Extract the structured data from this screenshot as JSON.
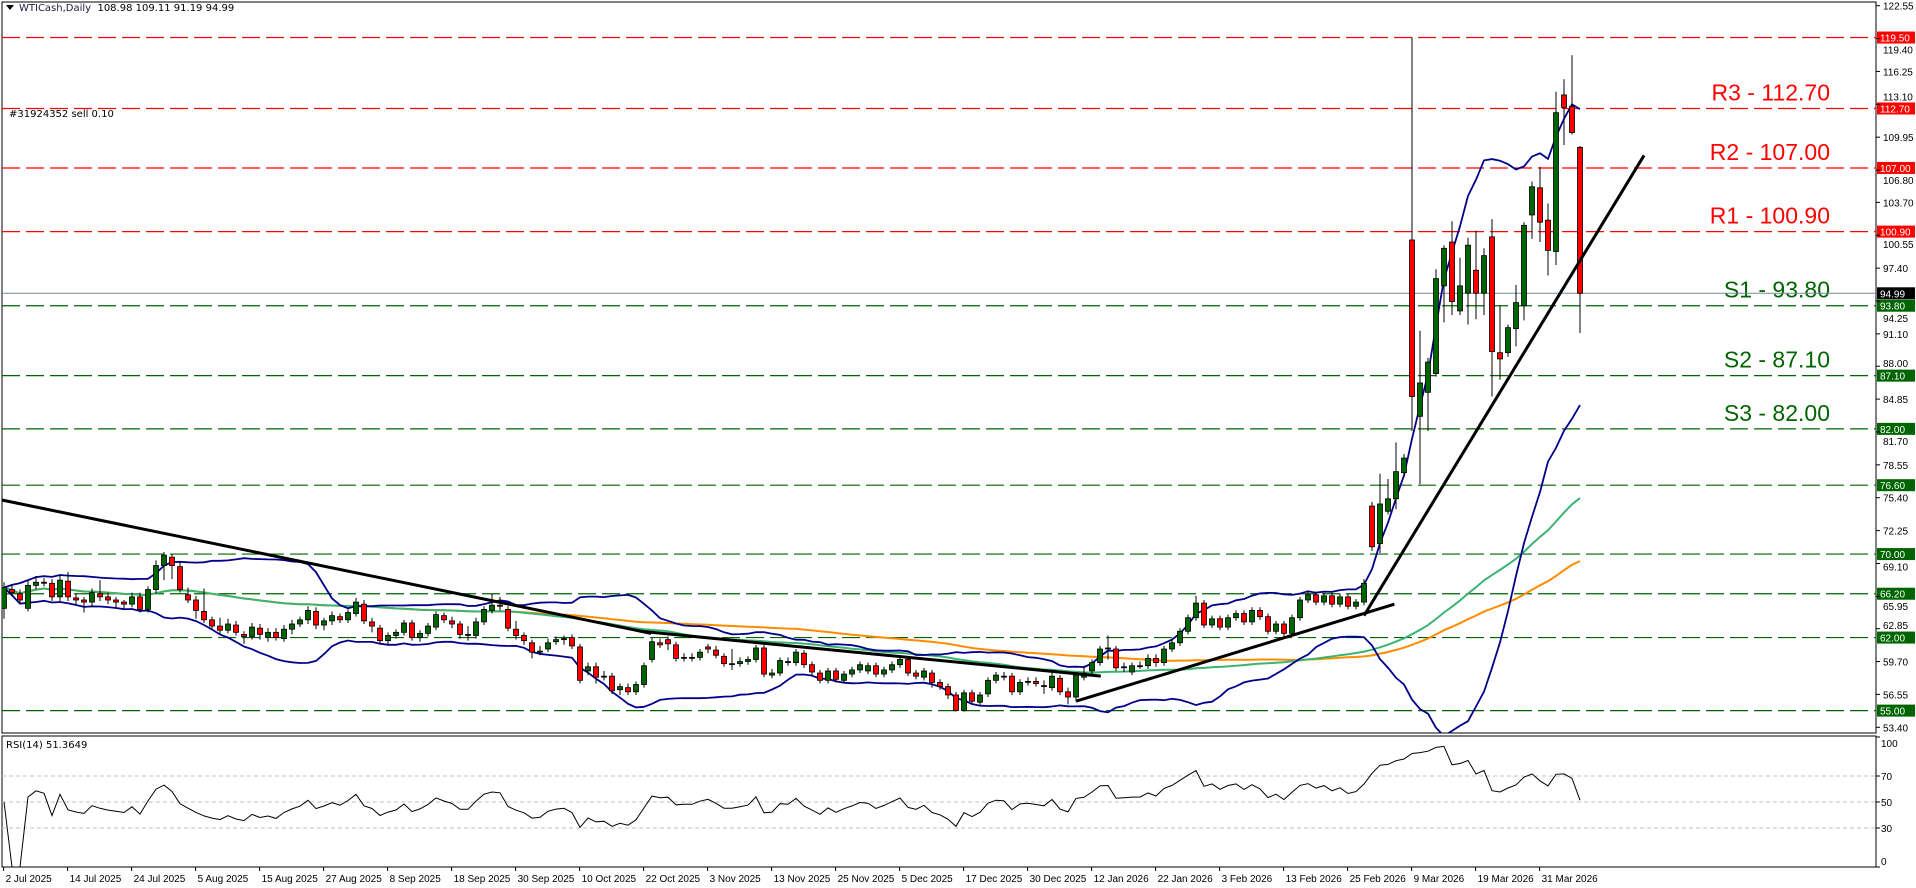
{
  "header": {
    "symbol": "WTICash,Daily",
    "ohlc_text": "108.98 109.11 91.19 94.99"
  },
  "order_label": "#31924352 sell 0.10",
  "rsi": {
    "label": "RSI(14) 51.3649",
    "levels": [
      70,
      50,
      30
    ],
    "axis_ticks": [
      "100",
      "70",
      "50",
      "30",
      "0"
    ]
  },
  "colors": {
    "up": "#006400",
    "down": "#ff0000",
    "resistance": "#ff0000",
    "support": "#006400",
    "bollinger": "#00008b",
    "ma_fast": "#3cb371",
    "ma_slow": "#ff8c00",
    "trendline": "#000000",
    "current_price": "#778899"
  },
  "chart_data": {
    "type": "candlestick",
    "title": "",
    "ylim": [
      53.4,
      122.55
    ],
    "y_ticks": [
      "122.55",
      "119.40",
      "116.25",
      "113.10",
      "109.95",
      "106.80",
      "103.70",
      "100.55",
      "97.40",
      "94.25",
      "91.10",
      "88.00",
      "84.85",
      "81.70",
      "78.55",
      "75.40",
      "72.25",
      "69.10",
      "65.95",
      "62.85",
      "59.70",
      "56.55",
      "53.40"
    ],
    "x_labels": [
      "2 Jul 2025",
      "14 Jul 2025",
      "24 Jul 2025",
      "5 Aug 2025",
      "15 Aug 2025",
      "27 Aug 2025",
      "8 Sep 2025",
      "18 Sep 2025",
      "30 Sep 2025",
      "10 Oct 2025",
      "22 Oct 2025",
      "3 Nov 2025",
      "13 Nov 2025",
      "25 Nov 2025",
      "5 Dec 2025",
      "17 Dec 2025",
      "30 Dec 2025",
      "12 Jan 2026",
      "22 Jan 2026",
      "3 Feb 2026",
      "13 Feb 2026",
      "25 Feb 2026",
      "9 Mar 2026",
      "19 Mar 2026",
      "31 Mar 2026"
    ],
    "bars_per_label": 8,
    "current_price": {
      "value": 94.99,
      "badge": "94.99"
    },
    "levels": [
      {
        "price": 119.5,
        "badge": "119.50",
        "kind": "resistance",
        "label": ""
      },
      {
        "price": 112.7,
        "badge": "112.70",
        "kind": "resistance",
        "label": "R3 - 112.70"
      },
      {
        "price": 107.0,
        "badge": "107.00",
        "kind": "resistance",
        "label": "R2 - 107.00"
      },
      {
        "price": 100.9,
        "badge": "100.90",
        "kind": "resistance",
        "label": "R1 - 100.90"
      },
      {
        "price": 93.8,
        "badge": "93.80",
        "kind": "support",
        "label": "S1 - 93.80"
      },
      {
        "price": 87.1,
        "badge": "87.10",
        "kind": "support",
        "label": "S2 - 87.10"
      },
      {
        "price": 82.0,
        "badge": "82.00",
        "kind": "support",
        "label": "S3 - 82.00"
      },
      {
        "price": 76.6,
        "badge": "76.60",
        "kind": "support",
        "label": ""
      },
      {
        "price": 70.0,
        "badge": "70.00",
        "kind": "support",
        "label": ""
      },
      {
        "price": 66.2,
        "badge": "66.20",
        "kind": "support",
        "label": ""
      },
      {
        "price": 62.0,
        "badge": "62.00",
        "kind": "support",
        "label": ""
      },
      {
        "price": 55.0,
        "badge": "55.00",
        "kind": "support",
        "label": ""
      }
    ],
    "trendlines": [
      {
        "from": [
          -0.4,
          75.2
        ],
        "to": [
          80.9,
          62.4
        ]
      },
      {
        "from": [
          79.6,
          62.6
        ],
        "to": [
          137.1,
          58.3
        ]
      },
      {
        "from": [
          134,
          55.9
        ],
        "to": [
          173.8,
          65.2
        ]
      },
      {
        "from": [
          170,
          64.1
        ],
        "to": [
          205,
          108.2
        ]
      }
    ],
    "ohlc": [
      [
        64.8,
        67.3,
        63.8,
        66.8
      ],
      [
        66.6,
        67.0,
        66.0,
        66.3
      ],
      [
        66.2,
        66.6,
        65.2,
        65.6
      ],
      [
        64.8,
        67.5,
        64.5,
        67.0
      ],
      [
        67.0,
        67.9,
        66.6,
        67.3
      ],
      [
        67.3,
        67.7,
        66.9,
        67.2
      ],
      [
        67.2,
        67.6,
        65.5,
        65.9
      ],
      [
        65.9,
        68.0,
        65.5,
        67.5
      ],
      [
        67.4,
        68.3,
        65.5,
        65.9
      ],
      [
        65.8,
        66.2,
        65.2,
        65.6
      ],
      [
        65.6,
        65.9,
        64.4,
        65.4
      ],
      [
        65.4,
        66.7,
        65.0,
        66.3
      ],
      [
        66.2,
        67.5,
        65.5,
        65.9
      ],
      [
        65.9,
        66.3,
        65.2,
        65.6
      ],
      [
        65.6,
        65.9,
        64.8,
        65.4
      ],
      [
        65.4,
        65.6,
        64.8,
        65.2
      ],
      [
        65.2,
        66.3,
        64.9,
        65.9
      ],
      [
        65.9,
        66.3,
        64.4,
        64.7
      ],
      [
        64.7,
        66.9,
        64.4,
        66.6
      ],
      [
        66.6,
        69.4,
        66.2,
        68.9
      ],
      [
        68.9,
        70.2,
        67.5,
        69.9
      ],
      [
        69.7,
        70.0,
        67.6,
        68.9
      ],
      [
        68.8,
        69.2,
        66.3,
        66.6
      ],
      [
        66.1,
        66.8,
        65.3,
        65.6
      ],
      [
        65.6,
        66.0,
        63.8,
        64.6
      ],
      [
        64.5,
        66.7,
        63.4,
        63.7
      ],
      [
        63.7,
        64.0,
        62.8,
        63.1
      ],
      [
        63.1,
        63.9,
        62.3,
        62.7
      ],
      [
        62.7,
        63.8,
        62.4,
        63.3
      ],
      [
        63.2,
        63.6,
        62.2,
        62.5
      ],
      [
        62.3,
        62.6,
        61.4,
        62.1
      ],
      [
        62.1,
        63.4,
        61.8,
        63.0
      ],
      [
        62.9,
        63.3,
        61.8,
        62.3
      ],
      [
        62.0,
        62.9,
        61.6,
        62.5
      ],
      [
        62.5,
        62.9,
        61.7,
        62.0
      ],
      [
        61.9,
        63.2,
        61.6,
        62.8
      ],
      [
        62.8,
        63.7,
        62.3,
        63.3
      ],
      [
        63.3,
        64.0,
        63.0,
        63.7
      ],
      [
        63.7,
        65.0,
        63.3,
        64.6
      ],
      [
        64.5,
        64.9,
        62.8,
        63.2
      ],
      [
        63.2,
        63.9,
        62.7,
        63.6
      ],
      [
        63.6,
        64.5,
        63.2,
        64.1
      ],
      [
        64.0,
        64.3,
        63.4,
        63.7
      ],
      [
        63.7,
        64.7,
        63.4,
        64.4
      ],
      [
        64.3,
        65.8,
        64.0,
        65.4
      ],
      [
        65.2,
        65.6,
        63.3,
        63.6
      ],
      [
        63.5,
        63.9,
        62.5,
        63.1
      ],
      [
        62.9,
        63.2,
        61.4,
        61.7
      ],
      [
        61.7,
        62.5,
        61.3,
        62.2
      ],
      [
        62.2,
        62.8,
        61.9,
        62.5
      ],
      [
        62.5,
        63.7,
        62.2,
        63.4
      ],
      [
        63.4,
        63.7,
        61.7,
        62.0
      ],
      [
        62.0,
        62.7,
        61.6,
        62.4
      ],
      [
        62.4,
        63.4,
        62.1,
        63.1
      ],
      [
        63.0,
        64.5,
        62.7,
        64.2
      ],
      [
        64.1,
        64.4,
        63.4,
        63.7
      ],
      [
        63.6,
        64.0,
        62.9,
        63.3
      ],
      [
        63.3,
        63.6,
        61.9,
        62.3
      ],
      [
        62.3,
        63.1,
        61.7,
        62.3
      ],
      [
        62.2,
        63.9,
        61.9,
        63.5
      ],
      [
        63.5,
        65.0,
        63.2,
        64.7
      ],
      [
        64.6,
        66.2,
        64.3,
        65.1
      ],
      [
        65.1,
        65.9,
        64.6,
        65.0
      ],
      [
        64.7,
        65.0,
        62.6,
        62.9
      ],
      [
        62.8,
        63.6,
        61.8,
        62.2
      ],
      [
        62.2,
        62.5,
        61.3,
        61.7
      ],
      [
        61.5,
        61.8,
        60.0,
        60.6
      ],
      [
        60.6,
        61.2,
        60.3,
        60.7
      ],
      [
        60.9,
        61.9,
        60.6,
        61.5
      ],
      [
        61.6,
        62.1,
        61.3,
        61.8
      ],
      [
        61.8,
        62.2,
        61.3,
        61.9
      ],
      [
        62.0,
        62.3,
        60.9,
        61.2
      ],
      [
        61.1,
        61.4,
        57.6,
        57.9
      ],
      [
        58.8,
        59.6,
        58.4,
        59.2
      ],
      [
        59.2,
        59.6,
        57.6,
        58.2
      ],
      [
        58.3,
        58.8,
        57.9,
        58.3
      ],
      [
        58.3,
        58.6,
        56.6,
        56.9
      ],
      [
        57.0,
        57.6,
        56.5,
        57.3
      ],
      [
        57.2,
        57.6,
        56.5,
        56.8
      ],
      [
        56.8,
        57.8,
        56.5,
        57.5
      ],
      [
        57.5,
        59.6,
        57.2,
        59.3
      ],
      [
        59.9,
        62.0,
        59.6,
        61.6
      ],
      [
        61.5,
        61.9,
        61.0,
        61.3
      ],
      [
        61.8,
        62.1,
        60.8,
        61.4
      ],
      [
        61.3,
        61.6,
        59.7,
        60.0
      ],
      [
        60.1,
        60.5,
        59.7,
        60.1
      ],
      [
        60.1,
        60.5,
        59.7,
        60.1
      ],
      [
        60.1,
        60.9,
        59.8,
        60.6
      ],
      [
        61.1,
        61.4,
        60.5,
        60.9
      ],
      [
        60.8,
        61.2,
        60.0,
        60.3
      ],
      [
        60.2,
        60.5,
        59.2,
        59.5
      ],
      [
        59.5,
        60.9,
        58.9,
        59.5
      ],
      [
        59.5,
        60.1,
        59.2,
        59.7
      ],
      [
        59.7,
        60.2,
        59.4,
        59.9
      ],
      [
        59.9,
        61.3,
        59.6,
        61.0
      ],
      [
        61.0,
        61.3,
        58.2,
        58.5
      ],
      [
        58.4,
        59.0,
        58.1,
        58.6
      ],
      [
        58.6,
        60.1,
        58.3,
        59.8
      ],
      [
        59.7,
        60.1,
        59.3,
        59.7
      ],
      [
        59.6,
        60.9,
        59.3,
        60.6
      ],
      [
        60.5,
        60.8,
        59.1,
        59.4
      ],
      [
        59.4,
        59.7,
        58.4,
        58.7
      ],
      [
        58.6,
        58.9,
        57.6,
        57.9
      ],
      [
        57.9,
        59.1,
        57.6,
        58.8
      ],
      [
        58.8,
        59.1,
        57.7,
        58.0
      ],
      [
        57.9,
        58.8,
        57.6,
        58.5
      ],
      [
        58.5,
        59.2,
        58.2,
        58.9
      ],
      [
        58.9,
        59.7,
        58.6,
        59.4
      ],
      [
        58.8,
        59.6,
        58.5,
        59.3
      ],
      [
        59.3,
        59.6,
        58.2,
        58.5
      ],
      [
        58.5,
        59.2,
        58.2,
        58.9
      ],
      [
        58.9,
        59.7,
        58.6,
        59.4
      ],
      [
        59.4,
        60.2,
        59.1,
        59.9
      ],
      [
        59.9,
        60.2,
        58.3,
        58.6
      ],
      [
        58.6,
        58.9,
        58.0,
        58.3
      ],
      [
        58.2,
        59.1,
        57.9,
        58.8
      ],
      [
        58.6,
        58.9,
        57.2,
        57.7
      ],
      [
        57.7,
        58.0,
        57.0,
        57.3
      ],
      [
        57.3,
        57.6,
        56.1,
        56.5
      ],
      [
        56.5,
        56.8,
        54.9,
        55.0
      ],
      [
        55.0,
        57.0,
        54.9,
        56.7
      ],
      [
        56.7,
        57.0,
        55.6,
        55.9
      ],
      [
        55.8,
        56.8,
        55.5,
        56.5
      ],
      [
        56.6,
        58.2,
        56.3,
        57.9
      ],
      [
        57.9,
        58.7,
        57.6,
        58.4
      ],
      [
        58.3,
        58.7,
        57.9,
        58.3
      ],
      [
        58.3,
        58.6,
        56.5,
        56.8
      ],
      [
        56.8,
        58.0,
        56.5,
        57.7
      ],
      [
        57.8,
        58.2,
        57.4,
        57.8
      ],
      [
        57.8,
        58.2,
        57.3,
        57.6
      ],
      [
        57.4,
        57.9,
        56.6,
        57.4
      ],
      [
        57.2,
        58.6,
        56.9,
        58.3
      ],
      [
        58.1,
        58.4,
        56.5,
        56.8
      ],
      [
        56.8,
        57.2,
        55.6,
        56.3
      ],
      [
        56.3,
        58.7,
        55.9,
        58.4
      ],
      [
        58.2,
        59.3,
        57.9,
        58.6
      ],
      [
        58.8,
        59.9,
        58.5,
        59.6
      ],
      [
        59.6,
        61.2,
        59.3,
        60.9
      ],
      [
        61.0,
        62.2,
        59.9,
        61.0
      ],
      [
        60.9,
        61.2,
        58.8,
        59.1
      ],
      [
        59.2,
        59.6,
        58.7,
        59.2
      ],
      [
        58.7,
        59.6,
        58.4,
        59.3
      ],
      [
        59.3,
        59.7,
        59.0,
        59.3
      ],
      [
        59.3,
        60.4,
        59.0,
        60.0
      ],
      [
        60.0,
        60.4,
        59.2,
        59.6
      ],
      [
        59.6,
        61.2,
        59.3,
        60.9
      ],
      [
        60.9,
        61.8,
        60.6,
        61.5
      ],
      [
        61.5,
        62.9,
        61.2,
        62.6
      ],
      [
        62.6,
        64.2,
        62.3,
        63.9
      ],
      [
        63.9,
        66.0,
        63.6,
        65.3
      ],
      [
        65.3,
        65.6,
        62.9,
        63.2
      ],
      [
        63.2,
        64.1,
        62.9,
        63.8
      ],
      [
        63.8,
        64.1,
        62.7,
        63.0
      ],
      [
        63.0,
        64.2,
        62.7,
        63.9
      ],
      [
        63.9,
        64.6,
        63.6,
        64.3
      ],
      [
        64.3,
        64.6,
        63.2,
        63.5
      ],
      [
        63.5,
        64.9,
        63.2,
        64.6
      ],
      [
        64.6,
        64.9,
        63.7,
        64.0
      ],
      [
        64.0,
        64.3,
        62.3,
        62.6
      ],
      [
        62.6,
        63.6,
        62.3,
        63.3
      ],
      [
        63.3,
        63.6,
        62.1,
        62.4
      ],
      [
        62.4,
        64.2,
        62.1,
        63.9
      ],
      [
        63.9,
        65.9,
        63.6,
        65.6
      ],
      [
        65.6,
        66.5,
        65.3,
        66.1
      ],
      [
        66.1,
        66.4,
        65.1,
        65.4
      ],
      [
        65.4,
        66.3,
        65.1,
        66.0
      ],
      [
        66.0,
        66.3,
        64.9,
        65.2
      ],
      [
        65.2,
        66.2,
        64.9,
        65.9
      ],
      [
        65.9,
        66.2,
        64.7,
        65.0
      ],
      [
        65.0,
        65.7,
        64.7,
        65.4
      ],
      [
        65.4,
        67.6,
        65.1,
        67.2
      ],
      [
        74.6,
        75.0,
        70.3,
        70.7
      ],
      [
        71.0,
        77.7,
        70.1,
        74.8
      ],
      [
        74.1,
        77.2,
        73.8,
        75.3
      ],
      [
        75.3,
        80.7,
        74.3,
        77.9
      ],
      [
        77.8,
        79.6,
        77.4,
        79.2
      ],
      [
        100.1,
        119.5,
        81.8,
        85.1
      ],
      [
        83.2,
        91.4,
        76.7,
        86.4
      ],
      [
        85.5,
        88.8,
        81.8,
        88.4
      ],
      [
        87.3,
        97.3,
        87.0,
        96.4
      ],
      [
        95.7,
        99.6,
        92.2,
        99.3
      ],
      [
        99.9,
        101.9,
        92.9,
        94.2
      ],
      [
        93.3,
        98.4,
        92.9,
        95.7
      ],
      [
        95.0,
        100.3,
        92.0,
        99.6
      ],
      [
        97.2,
        101.0,
        92.5,
        95.0
      ],
      [
        95.0,
        99.3,
        92.9,
        98.6
      ],
      [
        100.4,
        102.1,
        85.1,
        89.4
      ],
      [
        89.3,
        93.8,
        86.7,
        88.7
      ],
      [
        89.3,
        92.0,
        88.9,
        91.7
      ],
      [
        91.6,
        95.8,
        89.9,
        94.1
      ],
      [
        93.8,
        101.8,
        92.4,
        101.5
      ],
      [
        102.5,
        105.7,
        100.2,
        105.2
      ],
      [
        105.1,
        107.1,
        99.9,
        101.8
      ],
      [
        102.0,
        103.6,
        96.7,
        99.1
      ],
      [
        99.0,
        114.3,
        97.7,
        112.3
      ],
      [
        114.0,
        115.5,
        109.2,
        112.8
      ],
      [
        112.9,
        117.8,
        110.2,
        110.4
      ],
      [
        108.98,
        109.11,
        91.19,
        94.99
      ]
    ]
  }
}
